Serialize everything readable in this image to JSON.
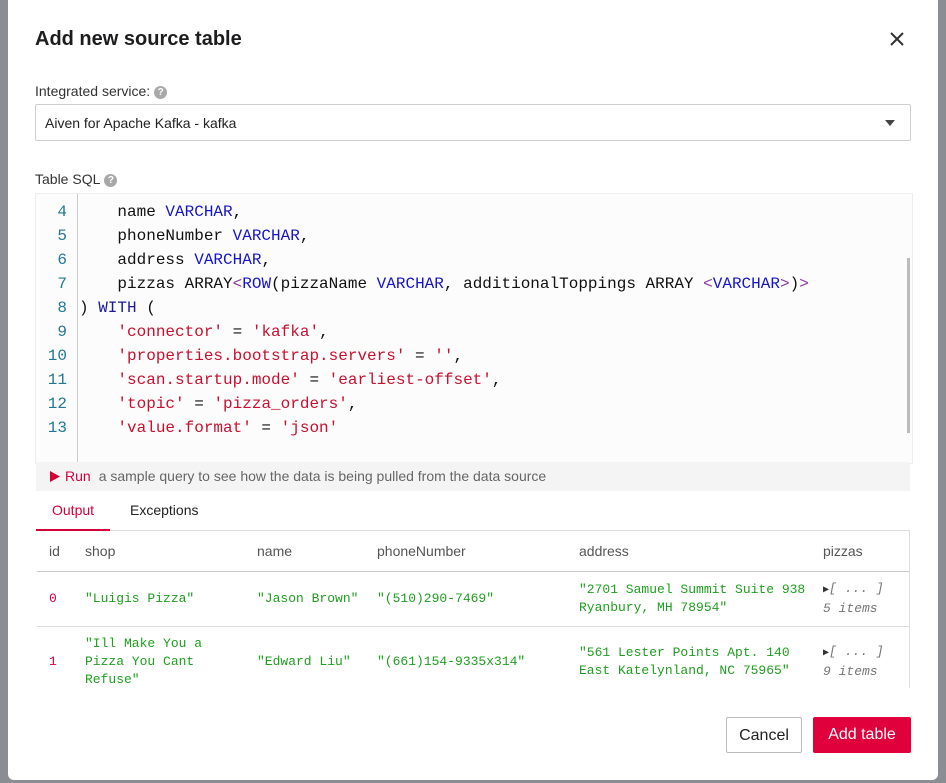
{
  "dialog": {
    "title": "Add new source table"
  },
  "service": {
    "label": "Integrated service:",
    "value": "Aiven for Apache Kafka - kafka"
  },
  "sql": {
    "label": "Table SQL",
    "lines": [
      {
        "number": 4,
        "tokens": [
          {
            "text": "    name ",
            "color": "#111111"
          },
          {
            "text": "VARCHAR",
            "color": "#1515c8"
          },
          {
            "text": ",",
            "color": "#111111"
          }
        ]
      },
      {
        "number": 5,
        "tokens": [
          {
            "text": "    phoneNumber ",
            "color": "#111111"
          },
          {
            "text": "VARCHAR",
            "color": "#1515c8"
          },
          {
            "text": ",",
            "color": "#111111"
          }
        ]
      },
      {
        "number": 6,
        "tokens": [
          {
            "text": "    address ",
            "color": "#111111"
          },
          {
            "text": "VARCHAR",
            "color": "#1515c8"
          },
          {
            "text": ",",
            "color": "#111111"
          }
        ]
      },
      {
        "number": 7,
        "tokens": [
          {
            "text": "    pizzas ARRAY",
            "color": "#111111"
          },
          {
            "text": "<",
            "color": "#8a3aa8"
          },
          {
            "text": "ROW",
            "color": "#1515c8"
          },
          {
            "text": "(pizzaName ",
            "color": "#111111"
          },
          {
            "text": "VARCHAR",
            "color": "#1515c8"
          },
          {
            "text": ", additionalToppings ARRAY ",
            "color": "#111111"
          },
          {
            "text": "<",
            "color": "#8a3aa8"
          },
          {
            "text": "VARCHAR",
            "color": "#1515c8"
          },
          {
            "text": ">",
            "color": "#8a3aa8"
          },
          {
            "text": ")",
            "color": "#111111"
          },
          {
            "text": ">",
            "color": "#8a3aa8"
          }
        ]
      },
      {
        "number": 8,
        "tokens": [
          {
            "text": ") ",
            "color": "#111111"
          },
          {
            "text": "WITH",
            "color": "#1a1a9a"
          },
          {
            "text": " (",
            "color": "#111111"
          }
        ]
      },
      {
        "number": 9,
        "tokens": [
          {
            "text": "    ",
            "color": "#111111"
          },
          {
            "text": "'connector'",
            "color": "#c8102e"
          },
          {
            "text": " = ",
            "color": "#111111"
          },
          {
            "text": "'kafka'",
            "color": "#c8102e"
          },
          {
            "text": ",",
            "color": "#111111"
          }
        ]
      },
      {
        "number": 10,
        "tokens": [
          {
            "text": "    ",
            "color": "#111111"
          },
          {
            "text": "'properties.bootstrap.servers'",
            "color": "#c8102e"
          },
          {
            "text": " = ",
            "color": "#111111"
          },
          {
            "text": "''",
            "color": "#c8102e"
          },
          {
            "text": ",",
            "color": "#111111"
          }
        ]
      },
      {
        "number": 11,
        "tokens": [
          {
            "text": "    ",
            "color": "#111111"
          },
          {
            "text": "'scan.startup.mode'",
            "color": "#c8102e"
          },
          {
            "text": " = ",
            "color": "#111111"
          },
          {
            "text": "'earliest-offset'",
            "color": "#c8102e"
          },
          {
            "text": ",",
            "color": "#111111"
          }
        ]
      },
      {
        "number": 12,
        "tokens": [
          {
            "text": "    ",
            "color": "#111111"
          },
          {
            "text": "'topic'",
            "color": "#c8102e"
          },
          {
            "text": " = ",
            "color": "#111111"
          },
          {
            "text": "'pizza_orders'",
            "color": "#c8102e"
          },
          {
            "text": ",",
            "color": "#111111"
          }
        ]
      },
      {
        "number": 13,
        "tokens": [
          {
            "text": "    ",
            "color": "#111111"
          },
          {
            "text": "'value.format'",
            "color": "#c8102e"
          },
          {
            "text": " = ",
            "color": "#111111"
          },
          {
            "text": "'json'",
            "color": "#c8102e"
          }
        ]
      }
    ]
  },
  "run": {
    "button": "Run",
    "hint": "a sample query to see how the data is being pulled from the data source"
  },
  "tabs": [
    "Output",
    "Exceptions"
  ],
  "table": {
    "columns": [
      "id",
      "shop",
      "name",
      "phoneNumber",
      "address",
      "pizzas"
    ],
    "rows": [
      [
        0,
        "\"Luigis Pizza\"",
        "\"Jason Brown\"",
        "\"(510)290-7469\"",
        "\"2701 Samuel Summit Suite 938 Ryanbury, MH 78954\"",
        {
          "collapsed": "[ ... ]",
          "count": "5 items"
        }
      ],
      [
        1,
        "\"Ill Make You a Pizza You Cant Refuse\"",
        "\"Edward Liu\"",
        "\"(661)154-9335x314\"",
        "\"561 Lester Points Apt. 140 East Katelynland, NC 75965\"",
        {
          "collapsed": "[ ... ]",
          "count": "9 items"
        }
      ]
    ]
  },
  "buttons": {
    "cancel": "Cancel",
    "add": "Add table"
  }
}
